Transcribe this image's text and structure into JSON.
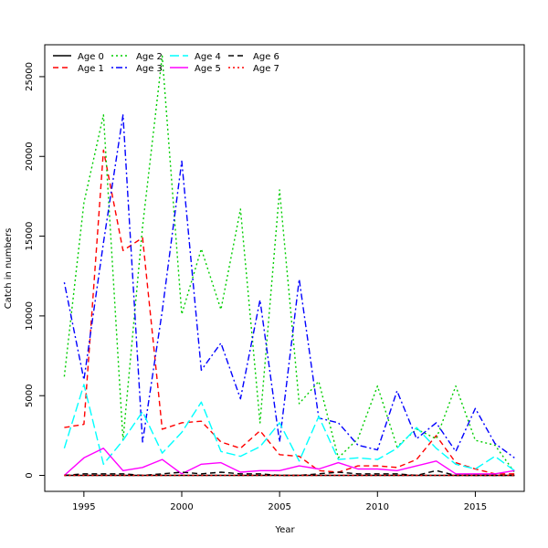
{
  "chart_data": {
    "type": "line",
    "xlabel": "Year",
    "ylabel": "Catch in numbers",
    "xlim": [
      1993.0,
      2017.5
    ],
    "ylim": [
      -1000,
      27000
    ],
    "x_ticks": [
      1995,
      2000,
      2005,
      2010,
      2015
    ],
    "y_ticks": [
      0,
      5000,
      10000,
      15000,
      20000,
      25000
    ],
    "grid": false,
    "legend_position": "top-left",
    "x": [
      1994,
      1995,
      1996,
      1997,
      1998,
      1999,
      2000,
      2001,
      2002,
      2003,
      2004,
      2005,
      2006,
      2007,
      2008,
      2009,
      2010,
      2011,
      2012,
      2013,
      2014,
      2015,
      2016,
      2017
    ],
    "series": [
      {
        "name": "Age 0",
        "color": "#000000",
        "dash": "solid",
        "values": [
          0,
          0,
          0,
          0,
          0,
          0,
          0,
          0,
          0,
          0,
          0,
          0,
          0,
          0,
          0,
          0,
          0,
          0,
          0,
          0,
          0,
          0,
          0,
          0
        ]
      },
      {
        "name": "Age 1",
        "color": "#ff0000",
        "dash": "dashed",
        "values": [
          3000,
          3200,
          20400,
          14100,
          14900,
          2900,
          3300,
          3400,
          2100,
          1700,
          2800,
          1300,
          1200,
          300,
          200,
          600,
          600,
          500,
          1000,
          2500,
          800,
          400,
          100,
          100
        ]
      },
      {
        "name": "Age 2",
        "color": "#00cd00",
        "dash": "dotted",
        "values": [
          6200,
          17100,
          22600,
          2200,
          15600,
          26300,
          10100,
          14200,
          10400,
          16700,
          3300,
          17900,
          4500,
          5900,
          1100,
          2300,
          5600,
          1800,
          2900,
          2300,
          5600,
          2200,
          1900,
          200
        ]
      },
      {
        "name": "Age 3",
        "color": "#0000ff",
        "dash": "dotdash",
        "values": [
          12100,
          6000,
          14600,
          22600,
          2100,
          10300,
          19700,
          6600,
          8300,
          4800,
          11000,
          2100,
          12300,
          3600,
          3300,
          1900,
          1600,
          5300,
          2300,
          3300,
          1500,
          4200,
          2000,
          1100
        ]
      },
      {
        "name": "Age 4",
        "color": "#00ffff",
        "dash": "longdash",
        "values": [
          1700,
          5700,
          700,
          2200,
          4000,
          1400,
          2700,
          4600,
          1500,
          1200,
          1800,
          3300,
          900,
          3700,
          1000,
          1100,
          1000,
          1700,
          3000,
          1700,
          700,
          400,
          1200,
          300
        ]
      },
      {
        "name": "Age 5",
        "color": "#ff00ff",
        "dash": "solid",
        "values": [
          0,
          1100,
          1700,
          300,
          500,
          1000,
          100,
          700,
          800,
          200,
          300,
          300,
          600,
          400,
          800,
          400,
          400,
          300,
          600,
          900,
          100,
          100,
          100,
          300
        ]
      },
      {
        "name": "Age 6",
        "color": "#000000",
        "dash": "dashed",
        "values": [
          0,
          100,
          100,
          100,
          0,
          100,
          200,
          100,
          200,
          100,
          100,
          0,
          0,
          100,
          200,
          100,
          100,
          100,
          0,
          300,
          0,
          0,
          0,
          0
        ]
      },
      {
        "name": "Age 7",
        "color": "#ff0000",
        "dash": "dotted",
        "values": [
          0,
          0,
          0,
          0,
          0,
          0,
          0,
          0,
          0,
          0,
          0,
          0,
          0,
          0,
          0,
          0,
          0,
          0,
          0,
          0,
          0,
          0,
          0,
          0
        ]
      }
    ]
  }
}
